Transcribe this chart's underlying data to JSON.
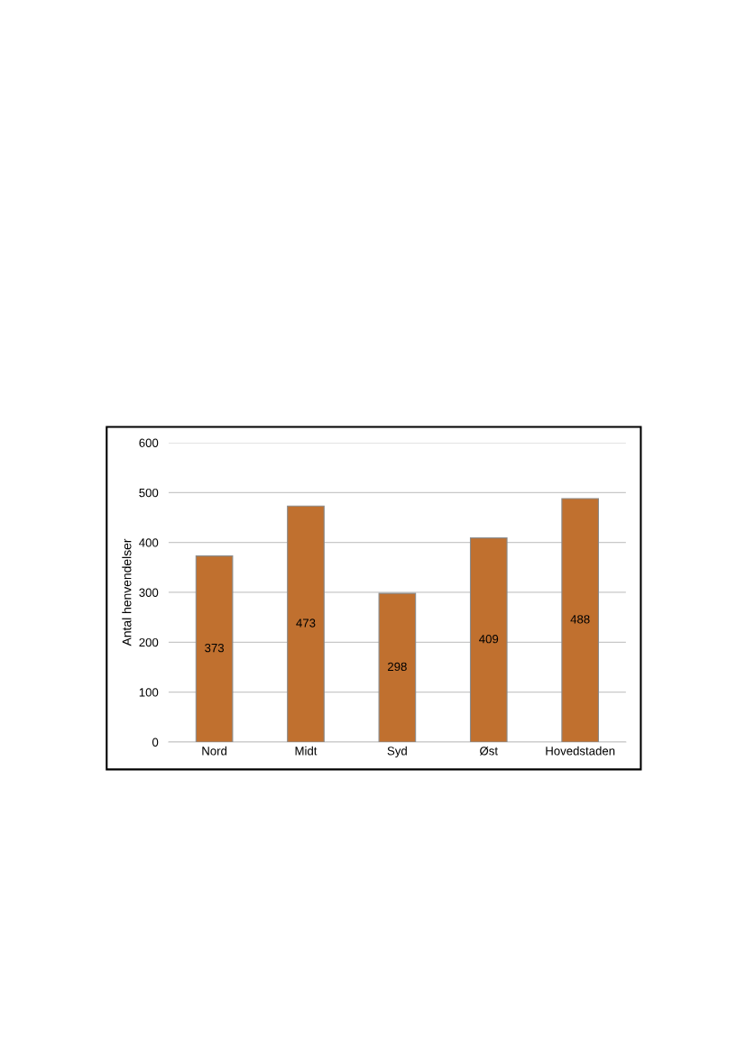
{
  "chart_data": {
    "type": "bar",
    "ylabel": "Antal henvendelser",
    "categories": [
      "Nord",
      "Midt",
      "Syd",
      "Øst",
      "Hovedstaden"
    ],
    "values": [
      373,
      473,
      298,
      409,
      488
    ],
    "color": "#c0702f",
    "ylim": [
      0,
      600
    ],
    "yticks": [
      0,
      100,
      200,
      300,
      400,
      500,
      600
    ],
    "grid": "y",
    "data_labels": true
  }
}
